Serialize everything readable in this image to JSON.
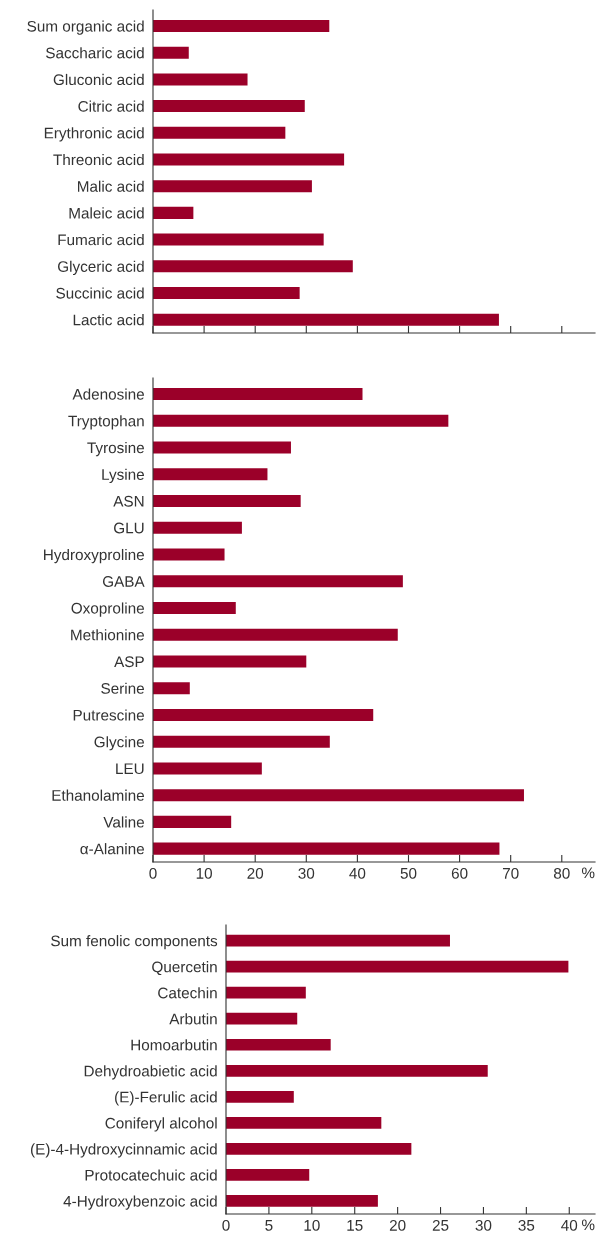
{
  "chart_data": [
    {
      "type": "bar",
      "orientation": "horizontal",
      "tick_labels": "y",
      "color": "#9b0029",
      "categories": [
        "Sum organic acid",
        "Saccharic acid",
        "Gluconic acid",
        "Citric acid",
        "Erythronic acid",
        "Threonic acid",
        "Malic acid",
        "Maleic acid",
        "Fumaric acid",
        "Glyceric acid",
        "Succinic acid",
        "Lactic acid"
      ],
      "values": [
        34.5,
        7.0,
        18.5,
        29.7,
        25.9,
        37.4,
        31.1,
        7.9,
        33.4,
        39.1,
        28.7,
        67.7
      ],
      "xlim": [
        0,
        86.5
      ],
      "xticks": [
        {
          "value": 0,
          "label": null
        },
        {
          "value": 10,
          "label": null
        },
        {
          "value": 20,
          "label": null
        },
        {
          "value": 30,
          "label": null
        },
        {
          "value": 40,
          "label": null
        },
        {
          "value": 50,
          "label": null
        },
        {
          "value": 60,
          "label": null
        },
        {
          "value": 70,
          "label": null
        },
        {
          "value": 80,
          "label": null
        }
      ]
    },
    {
      "type": "bar",
      "orientation": "horizontal",
      "color": "#9b0029",
      "xlabel": "%",
      "categories": [
        "Adenosine",
        "Tryptophan",
        "Tyrosine",
        "Lysine",
        "ASN",
        "GLU",
        "Hydroxyproline",
        "GABA",
        "Oxoproline",
        "Methionine",
        "ASP",
        "Serine",
        "Putrescine",
        "Glycine",
        "LEU",
        "Ethanolamine",
        "Valine",
        "α-Alanine"
      ],
      "values": [
        41.0,
        57.8,
        27.0,
        22.4,
        28.9,
        17.4,
        14.0,
        48.9,
        16.2,
        47.9,
        30.0,
        7.2,
        43.1,
        34.6,
        21.3,
        72.6,
        15.3,
        67.8
      ],
      "xlim": [
        0,
        86.5
      ],
      "xticks": [
        0,
        10,
        20,
        30,
        40,
        50,
        60,
        70,
        80
      ]
    },
    {
      "type": "bar",
      "orientation": "horizontal",
      "color": "#9b0029",
      "xlabel": "%",
      "categories": [
        "Sum fenolic components",
        "Quercetin",
        "Catechin",
        "Arbutin",
        "Homoarbutin",
        "Dehydroabietic acid",
        "(E)-Ferulic acid",
        "Coniferyl alcohol",
        "(E)-4-Hydroxycinnamic acid",
        "Protocatechuic acid",
        "4-Hydroxybenzoic acid"
      ],
      "values": [
        26.1,
        39.9,
        9.3,
        8.3,
        12.2,
        30.5,
        7.9,
        18.1,
        21.6,
        9.7,
        17.7
      ],
      "xlim": [
        0,
        43.0
      ],
      "xticks": [
        0,
        5,
        10,
        15,
        20,
        25,
        30,
        35,
        40
      ]
    }
  ]
}
